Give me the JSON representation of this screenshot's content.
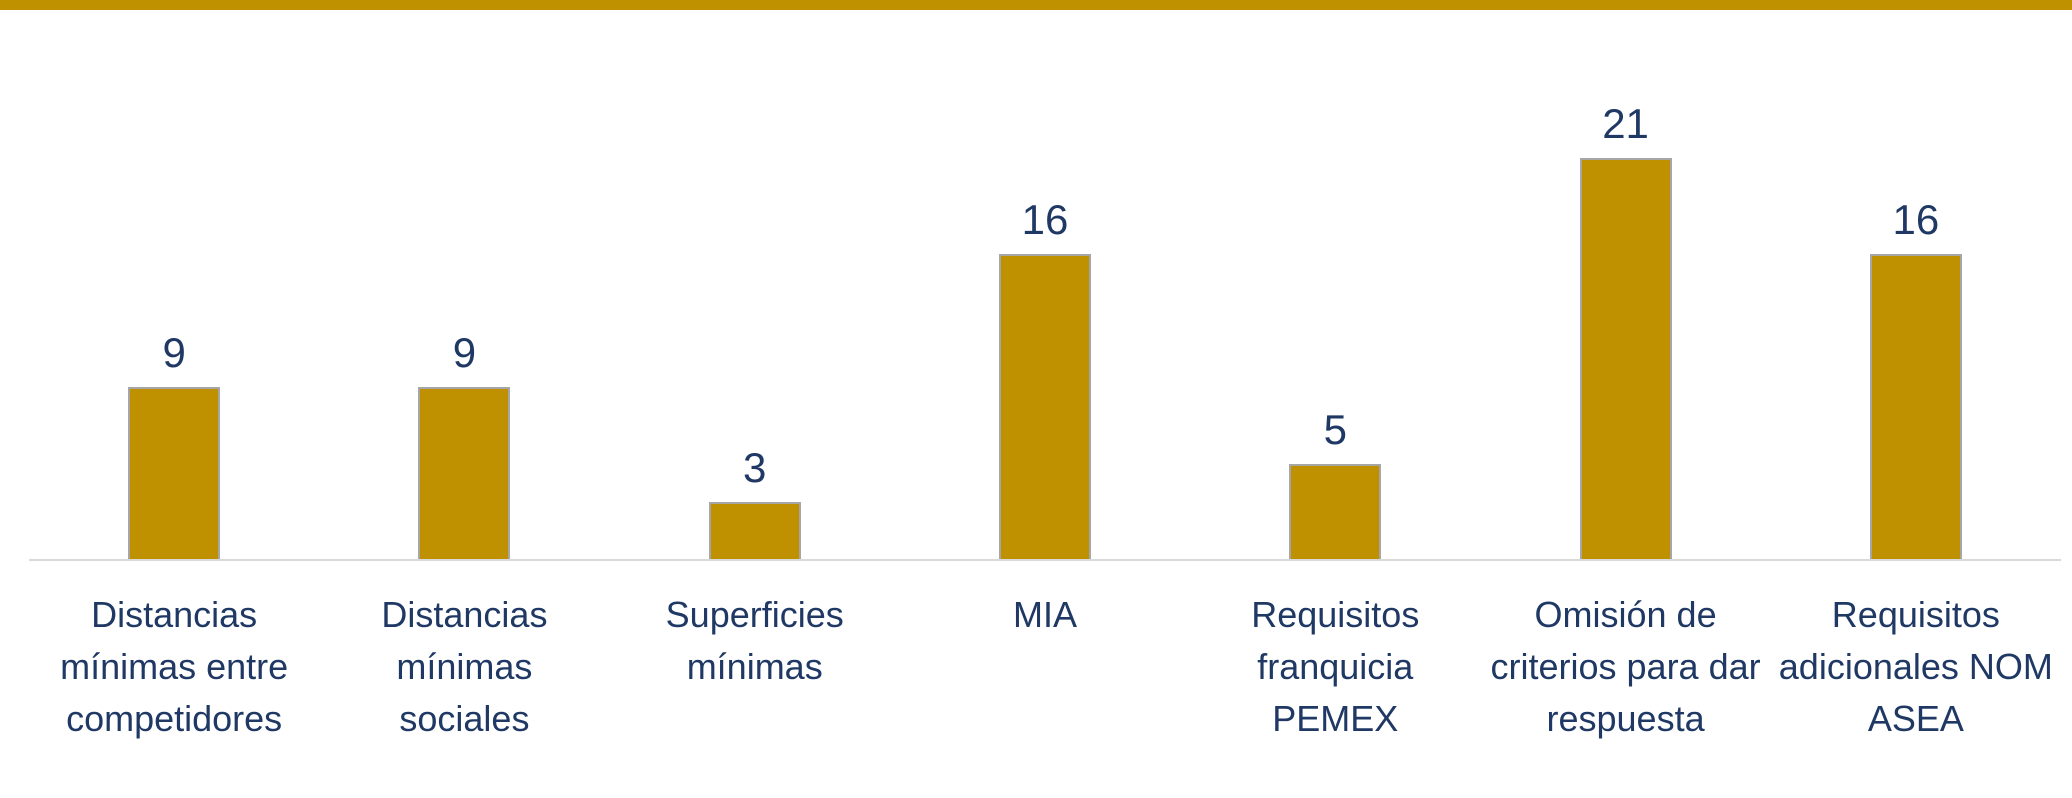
{
  "chart_data": {
    "type": "bar",
    "categories": [
      "Distancias mínimas entre competidores",
      "Distancias mínimas sociales",
      "Superficies mínimas",
      "MIA",
      "Requisitos franquicia PEMEX",
      "Omisión de criterios para dar respuesta",
      "Requisitos adicionales NOM ASEA"
    ],
    "values": [
      9,
      9,
      3,
      16,
      5,
      21,
      16
    ],
    "color": "#bf9000",
    "ylim": [
      0,
      25
    ]
  }
}
